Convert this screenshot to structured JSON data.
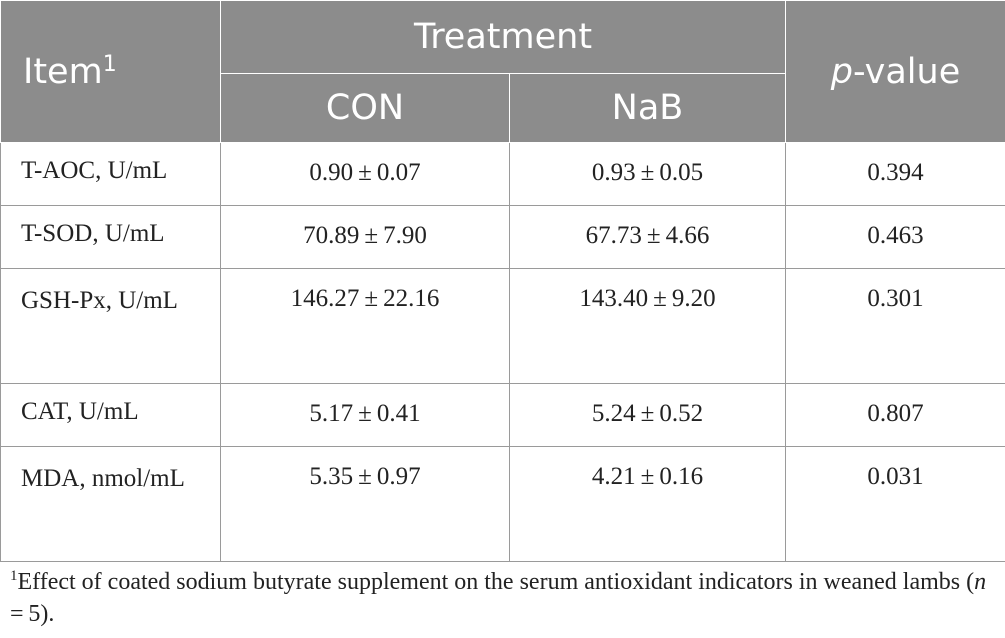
{
  "table": {
    "headers": {
      "item": "Item",
      "item_note_marker": "1",
      "treatment": "Treatment",
      "con": "CON",
      "nab": "NaB",
      "p_italic": "p",
      "p_rest": "-value"
    },
    "rows": [
      {
        "item": "T-AOC, U/mL",
        "con": "0.90 ± 0.07",
        "nab": "0.93 ± 0.05",
        "p": "0.394"
      },
      {
        "item": "T-SOD, U/mL",
        "con": "70.89 ± 7.90",
        "nab": "67.73 ± 4.66",
        "p": "0.463"
      },
      {
        "item": "GSH-Px, U/mL",
        "con": "146.27 ± 22.16",
        "nab": "143.40 ± 9.20",
        "p": "0.301"
      },
      {
        "item": "CAT, U/mL",
        "con": "5.17 ± 0.41",
        "nab": "5.24 ± 0.52",
        "p": "0.807"
      },
      {
        "item": "MDA, nmol/mL",
        "con": "5.35 ± 0.97",
        "nab": "4.21 ± 0.16",
        "p": "0.031"
      }
    ]
  },
  "footnote": {
    "marker": "1",
    "text_before": "Effect of coated sodium butyrate supplement on the serum antioxidant indicators in weaned lambs (",
    "n_italic": "n",
    "text_after": " = 5)."
  }
}
